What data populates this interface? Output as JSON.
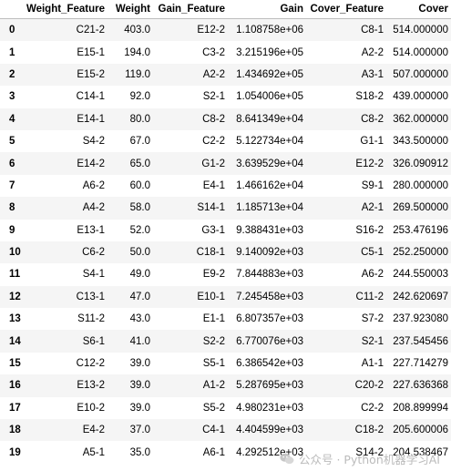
{
  "table": {
    "columns": [
      "",
      "Weight_Feature",
      "Weight",
      "Gain_Feature",
      "Gain",
      "Cover_Feature",
      "Cover"
    ],
    "rows": [
      {
        "index": "0",
        "weight_feature": "C21-2",
        "weight": "403.0",
        "gain_feature": "E12-2",
        "gain": "1.108758e+06",
        "cover_feature": "C8-1",
        "cover": "514.000000"
      },
      {
        "index": "1",
        "weight_feature": "E15-1",
        "weight": "194.0",
        "gain_feature": "C3-2",
        "gain": "3.215196e+05",
        "cover_feature": "A2-2",
        "cover": "514.000000"
      },
      {
        "index": "2",
        "weight_feature": "E15-2",
        "weight": "119.0",
        "gain_feature": "A2-2",
        "gain": "1.434692e+05",
        "cover_feature": "A3-1",
        "cover": "507.000000"
      },
      {
        "index": "3",
        "weight_feature": "C14-1",
        "weight": "92.0",
        "gain_feature": "S2-1",
        "gain": "1.054006e+05",
        "cover_feature": "S18-2",
        "cover": "439.000000"
      },
      {
        "index": "4",
        "weight_feature": "E14-1",
        "weight": "80.0",
        "gain_feature": "C8-2",
        "gain": "8.641349e+04",
        "cover_feature": "C8-2",
        "cover": "362.000000"
      },
      {
        "index": "5",
        "weight_feature": "S4-2",
        "weight": "67.0",
        "gain_feature": "C2-2",
        "gain": "5.122734e+04",
        "cover_feature": "G1-1",
        "cover": "343.500000"
      },
      {
        "index": "6",
        "weight_feature": "E14-2",
        "weight": "65.0",
        "gain_feature": "G1-2",
        "gain": "3.639529e+04",
        "cover_feature": "E12-2",
        "cover": "326.090912"
      },
      {
        "index": "7",
        "weight_feature": "A6-2",
        "weight": "60.0",
        "gain_feature": "E4-1",
        "gain": "1.466162e+04",
        "cover_feature": "S9-1",
        "cover": "280.000000"
      },
      {
        "index": "8",
        "weight_feature": "A4-2",
        "weight": "58.0",
        "gain_feature": "S14-1",
        "gain": "1.185713e+04",
        "cover_feature": "A2-1",
        "cover": "269.500000"
      },
      {
        "index": "9",
        "weight_feature": "E13-1",
        "weight": "52.0",
        "gain_feature": "G3-1",
        "gain": "9.388431e+03",
        "cover_feature": "S16-2",
        "cover": "253.476196"
      },
      {
        "index": "10",
        "weight_feature": "C6-2",
        "weight": "50.0",
        "gain_feature": "C18-1",
        "gain": "9.140092e+03",
        "cover_feature": "C5-1",
        "cover": "252.250000"
      },
      {
        "index": "11",
        "weight_feature": "S4-1",
        "weight": "49.0",
        "gain_feature": "E9-2",
        "gain": "7.844883e+03",
        "cover_feature": "A6-2",
        "cover": "244.550003"
      },
      {
        "index": "12",
        "weight_feature": "C13-1",
        "weight": "47.0",
        "gain_feature": "E10-1",
        "gain": "7.245458e+03",
        "cover_feature": "C11-2",
        "cover": "242.620697"
      },
      {
        "index": "13",
        "weight_feature": "S11-2",
        "weight": "43.0",
        "gain_feature": "E1-1",
        "gain": "6.807357e+03",
        "cover_feature": "S7-2",
        "cover": "237.923080"
      },
      {
        "index": "14",
        "weight_feature": "S6-1",
        "weight": "41.0",
        "gain_feature": "S2-2",
        "gain": "6.770076e+03",
        "cover_feature": "S2-1",
        "cover": "237.545456"
      },
      {
        "index": "15",
        "weight_feature": "C12-2",
        "weight": "39.0",
        "gain_feature": "S5-1",
        "gain": "6.386542e+03",
        "cover_feature": "A1-1",
        "cover": "227.714279"
      },
      {
        "index": "16",
        "weight_feature": "E13-2",
        "weight": "39.0",
        "gain_feature": "A1-2",
        "gain": "5.287695e+03",
        "cover_feature": "C20-2",
        "cover": "227.636368"
      },
      {
        "index": "17",
        "weight_feature": "E10-2",
        "weight": "39.0",
        "gain_feature": "S5-2",
        "gain": "4.980231e+03",
        "cover_feature": "C2-2",
        "cover": "208.899994"
      },
      {
        "index": "18",
        "weight_feature": "E4-2",
        "weight": "37.0",
        "gain_feature": "C4-1",
        "gain": "4.404599e+03",
        "cover_feature": "C18-2",
        "cover": "205.600006"
      },
      {
        "index": "19",
        "weight_feature": "A5-1",
        "weight": "35.0",
        "gain_feature": "A6-1",
        "gain": "4.292512e+03",
        "cover_feature": "S14-2",
        "cover": "204.538467"
      }
    ]
  },
  "watermark": {
    "text": "公众号 · Python机器学习AI",
    "icon": "wechat-icon",
    "color": "#b8b8b8"
  }
}
